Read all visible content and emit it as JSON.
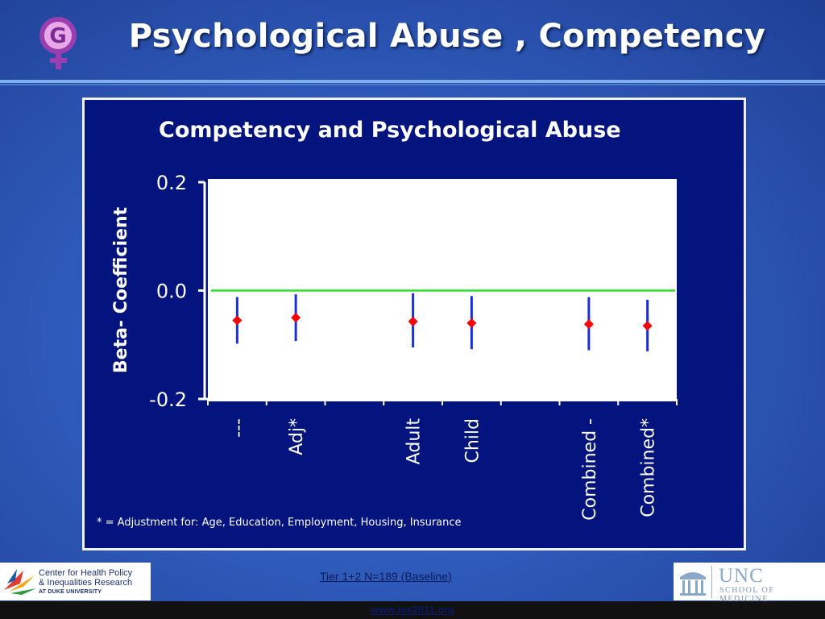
{
  "slide": {
    "title": "Psychological Abuse , Competency",
    "logo_icon": "venus-g-logo-icon"
  },
  "chart_data": {
    "type": "scatter",
    "title": "Competency  and Psychological Abuse",
    "ylabel": "Beta- Coefficient",
    "xlabel": "",
    "ylim": [
      -0.2,
      0.2
    ],
    "yticks": [
      "0.2",
      "0.0",
      "-0.2"
    ],
    "ytick_values": [
      0.2,
      0.0,
      -0.2
    ],
    "categories": [
      "---",
      "Adj*",
      "",
      "Adult",
      "Child",
      "",
      "Combined -",
      "Combined*"
    ],
    "points": [
      {
        "category": "---",
        "estimate": -0.055,
        "lower": -0.098,
        "upper": -0.012
      },
      {
        "category": "Adj*",
        "estimate": -0.05,
        "lower": -0.093,
        "upper": -0.007
      },
      {
        "category": "Adult",
        "estimate": -0.057,
        "lower": -0.105,
        "upper": -0.005
      },
      {
        "category": "Child",
        "estimate": -0.06,
        "lower": -0.108,
        "upper": -0.01
      },
      {
        "category": "Combined -",
        "estimate": -0.062,
        "lower": -0.11,
        "upper": -0.012
      },
      {
        "category": "Combined*",
        "estimate": -0.065,
        "lower": -0.112,
        "upper": -0.017
      }
    ],
    "reference_line": 0.0,
    "footnote": "* = Adjustment for: Age, Education, Employment, Housing, Insurance",
    "grid": false,
    "colors": {
      "background": "#04147e",
      "plot_area": "#ffffff",
      "estimate": "#ff0000",
      "error_bar": "#1a2ee0",
      "reference_line": "#2ee02e",
      "text": "#ffffff"
    }
  },
  "footer": {
    "left_logo_line1": "Center for Health Policy",
    "left_logo_line2": "& Inequalities Research",
    "left_logo_line3": "AT DUKE UNIVERSITY",
    "note": "Tier 1+2  N=189 (Baseline)",
    "right_logo_name": "UNC",
    "right_logo_school": "SCHOOL OF MEDICINE",
    "url": "www.ias2011.org"
  }
}
